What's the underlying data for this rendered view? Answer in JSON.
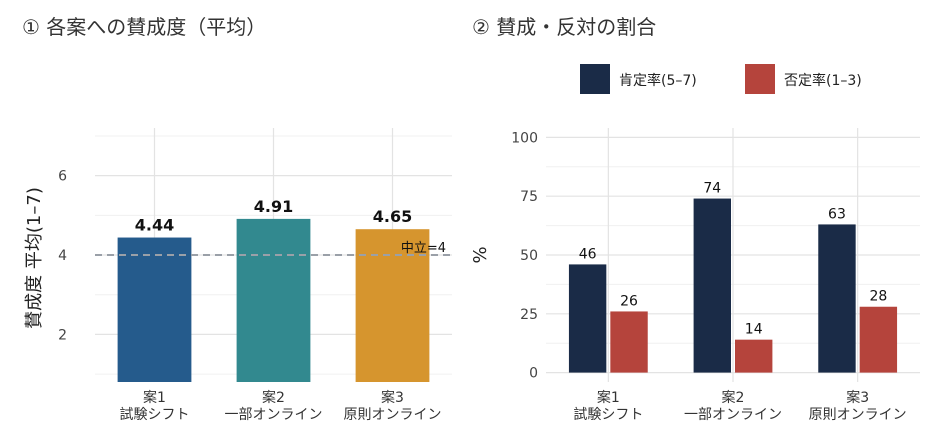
{
  "chart_data": [
    {
      "type": "bar",
      "title": "① 各案への賛成度（平均）",
      "ylabel": "賛成度 平均(1–7)",
      "ylim": [
        0.8,
        7.2
      ],
      "yticks": [
        2,
        4,
        6
      ],
      "categories": [
        {
          "line1": "案1",
          "line2": "試験シフト"
        },
        {
          "line1": "案2",
          "line2": "一部オンライン"
        },
        {
          "line1": "案3",
          "line2": "原則オンライン"
        }
      ],
      "values": [
        4.44,
        4.91,
        4.65
      ],
      "value_labels": [
        "4.44",
        "4.91",
        "4.65"
      ],
      "bar_colors": [
        "#255b8c",
        "#32898f",
        "#d6952e"
      ],
      "reference_line": {
        "value": 4,
        "label": "中立=4",
        "color": "#9aa0a8"
      },
      "grid": true
    },
    {
      "type": "bar",
      "title": "② 賛成・反対の割合",
      "ylabel": "%",
      "ylim": [
        -4,
        104
      ],
      "yticks": [
        0,
        25,
        50,
        75,
        100
      ],
      "ytick_labels": [
        "0",
        "25",
        "50",
        "75",
        "100"
      ],
      "categories": [
        {
          "line1": "案1",
          "line2": "試験シフト"
        },
        {
          "line1": "案2",
          "line2": "一部オンライン"
        },
        {
          "line1": "案3",
          "line2": "原則オンライン"
        }
      ],
      "series": [
        {
          "name": "肯定率(5–7)",
          "values": [
            46,
            74,
            63
          ],
          "labels": [
            "46",
            "74",
            "63"
          ],
          "color": "#1a2b47"
        },
        {
          "name": "否定率(1–3)",
          "values": [
            26,
            14,
            28
          ],
          "labels": [
            "26",
            "14",
            "28"
          ],
          "color": "#b5443c"
        }
      ],
      "legend": "top",
      "grid": true
    }
  ]
}
